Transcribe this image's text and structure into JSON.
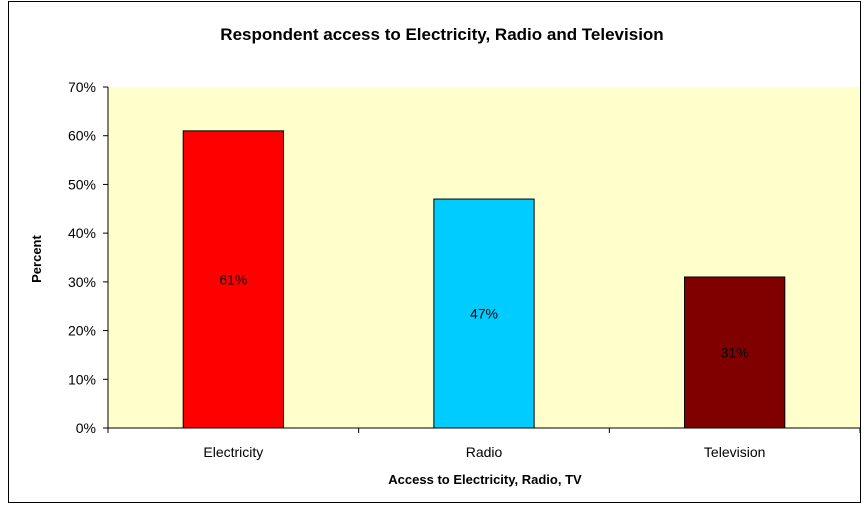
{
  "chart_data": {
    "type": "bar",
    "title": "Respondent access to Electricity, Radio and Television",
    "xlabel": "Access to Electricity, Radio, TV",
    "ylabel": "Percent",
    "categories": [
      "Electricity",
      "Radio",
      "Television"
    ],
    "values": [
      61,
      47,
      31
    ],
    "data_labels": [
      "61%",
      "47%",
      "31%"
    ],
    "bar_colors": [
      "#ff0000",
      "#00ccff",
      "#800000"
    ],
    "ylim": [
      0,
      70
    ],
    "y_ticks": [
      "0%",
      "10%",
      "20%",
      "30%",
      "40%",
      "50%",
      "60%",
      "70%"
    ],
    "plot_background": "#ffffcc",
    "grid": false,
    "legend": "none"
  }
}
